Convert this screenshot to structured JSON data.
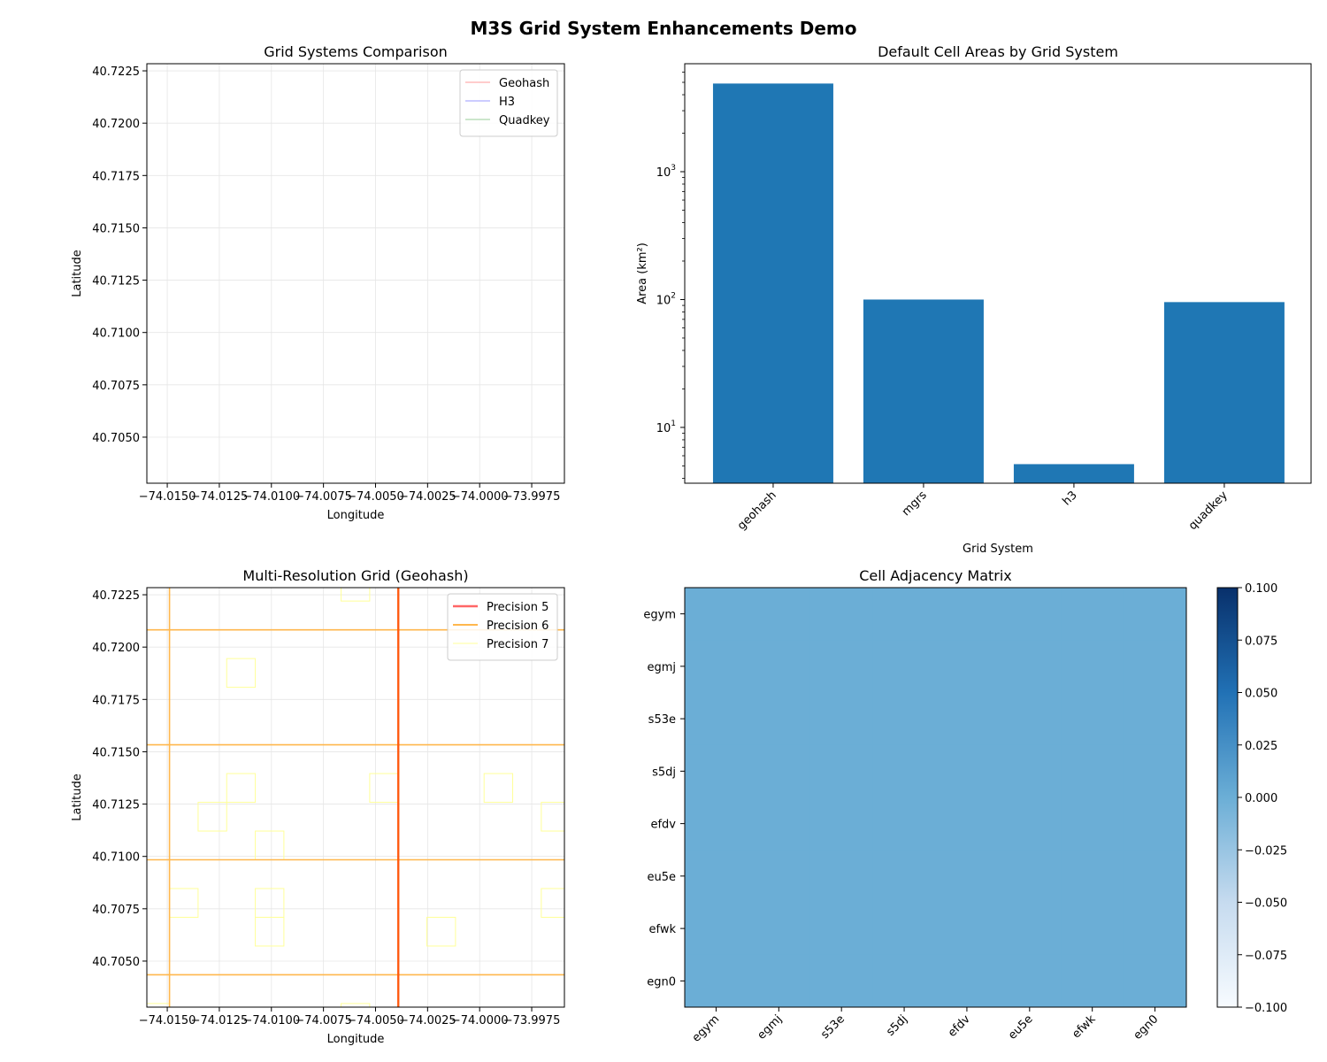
{
  "suptitle": "M3S Grid System Enhancements Demo",
  "chart_data": [
    {
      "type": "line",
      "title": "Grid Systems Comparison",
      "xlabel": "Longitude",
      "ylabel": "Latitude",
      "xlim": [
        -74.01598,
        -73.99593
      ],
      "ylim": [
        40.7028,
        40.72284
      ],
      "grid": true,
      "legend_placement": "upper right",
      "x_ticks": [
        -74.015,
        -74.0125,
        -74.01,
        -74.0075,
        -74.005,
        -74.0025,
        -74.0,
        -73.9975
      ],
      "x_tick_labels": [
        "−74.0150",
        "−74.0125",
        "−74.0100",
        "−74.0075",
        "−74.0050",
        "−74.0025",
        "−74.0000",
        "−73.9975"
      ],
      "y_ticks": [
        40.705,
        40.7075,
        40.71,
        40.7125,
        40.715,
        40.7175,
        40.72,
        40.7225
      ],
      "y_tick_labels": [
        "40.7050",
        "40.7075",
        "40.7100",
        "40.7125",
        "40.7150",
        "40.7175",
        "40.7200",
        "40.7225"
      ],
      "series": [
        {
          "name": "Geohash",
          "color": "#ff9999",
          "points": []
        },
        {
          "name": "H3",
          "color": "#9999ff",
          "points": []
        },
        {
          "name": "Quadkey",
          "color": "#99cc99",
          "points": []
        }
      ]
    },
    {
      "type": "bar",
      "title": "Default Cell Areas by Grid System",
      "xlabel": "Grid System",
      "ylabel": "Area (km²)",
      "yscale": "log",
      "ylim": [
        3.66,
        6990
      ],
      "categories": [
        "geohash",
        "mgrs",
        "h3",
        "quadkey"
      ],
      "values": [
        4892,
        100,
        5.16,
        95.5
      ],
      "color": "#1f77b4",
      "y_ticks": [
        10,
        100,
        1000
      ],
      "y_tick_labels": [
        {
          "base": "10",
          "exp": "1"
        },
        {
          "base": "10",
          "exp": "2"
        },
        {
          "base": "10",
          "exp": "3"
        }
      ]
    },
    {
      "type": "line",
      "title": "Multi-Resolution Grid (Geohash)",
      "xlabel": "Longitude",
      "ylabel": "Latitude",
      "xlim": [
        -74.01598,
        -73.99593
      ],
      "ylim": [
        40.7028,
        40.72284
      ],
      "grid": true,
      "legend_placement": "upper right",
      "x_ticks": [
        -74.015,
        -74.0125,
        -74.01,
        -74.0075,
        -74.005,
        -74.0025,
        -74.0,
        -73.9975
      ],
      "x_tick_labels": [
        "−74.0150",
        "−74.0125",
        "−74.0100",
        "−74.0075",
        "−74.0050",
        "−74.0025",
        "−74.0000",
        "−73.9975"
      ],
      "y_ticks": [
        40.705,
        40.7075,
        40.71,
        40.7125,
        40.715,
        40.7175,
        40.72,
        40.7225
      ],
      "y_tick_labels": [
        "40.7050",
        "40.7075",
        "40.7100",
        "40.7125",
        "40.7150",
        "40.7175",
        "40.7200",
        "40.7225"
      ],
      "series": [
        {
          "name": "Precision 5",
          "color": "#ff6666",
          "vertical_lines_lon": [
            -74.00390625
          ],
          "horizontal_lines_lat": []
        },
        {
          "name": "Precision 6",
          "color": "#ffb74d",
          "vertical_lines_lon": [
            -74.014893,
            -74.00390625
          ],
          "horizontal_lines_lat": [
            40.7208252,
            40.715332,
            40.7098389,
            40.7043457
          ]
        },
        {
          "name": "Precision 7",
          "color": "#ffff99",
          "cell_size_deg": 0.001373,
          "cells_sw": [
            [
              -74.006653,
              40.722199
            ],
            [
              -74.012146,
              40.718079
            ],
            [
              -74.012146,
              40.712585
            ],
            [
              -74.013519,
              40.711212
            ],
            [
              -74.010773,
              40.709839
            ],
            [
              -74.00528,
              40.712585
            ],
            [
              -73.999787,
              40.712585
            ],
            [
              -73.99704,
              40.711212
            ],
            [
              -74.014893,
              40.707092
            ],
            [
              -74.010773,
              40.707092
            ],
            [
              -74.010773,
              40.705719
            ],
            [
              -74.002533,
              40.705719
            ],
            [
              -73.99704,
              40.707092
            ],
            [
              -74.006653,
              40.701599
            ],
            [
              -74.016266,
              40.701599
            ]
          ]
        }
      ]
    },
    {
      "type": "heatmap",
      "title": "Cell Adjacency Matrix",
      "row_labels": [
        "egym",
        "egmj",
        "s53e",
        "s5dj",
        "efdv",
        "eu5e",
        "efwk",
        "egn0"
      ],
      "col_labels": [
        "egym",
        "egmj",
        "s53e",
        "s5dj",
        "efdv",
        "eu5e",
        "efwk",
        "egn0"
      ],
      "values": [
        [
          0,
          0,
          0,
          0,
          0,
          0,
          0,
          0
        ],
        [
          0,
          0,
          0,
          0,
          0,
          0,
          0,
          0
        ],
        [
          0,
          0,
          0,
          0,
          0,
          0,
          0,
          0
        ],
        [
          0,
          0,
          0,
          0,
          0,
          0,
          0,
          0
        ],
        [
          0,
          0,
          0,
          0,
          0,
          0,
          0,
          0
        ],
        [
          0,
          0,
          0,
          0,
          0,
          0,
          0,
          0
        ],
        [
          0,
          0,
          0,
          0,
          0,
          0,
          0,
          0
        ],
        [
          0,
          0,
          0,
          0,
          0,
          0,
          0,
          0
        ]
      ],
      "colormap": "Blues",
      "cell_color": "#6baed6",
      "colorbar_range": [
        -0.1,
        0.1
      ],
      "colorbar_ticks": [
        -0.1,
        -0.075,
        -0.05,
        -0.025,
        0,
        0.025,
        0.05,
        0.075,
        0.1
      ],
      "colorbar_tick_labels": [
        "−0.100",
        "−0.075",
        "−0.050",
        "−0.025",
        "0.000",
        "0.025",
        "0.050",
        "0.075",
        "0.100"
      ]
    }
  ]
}
